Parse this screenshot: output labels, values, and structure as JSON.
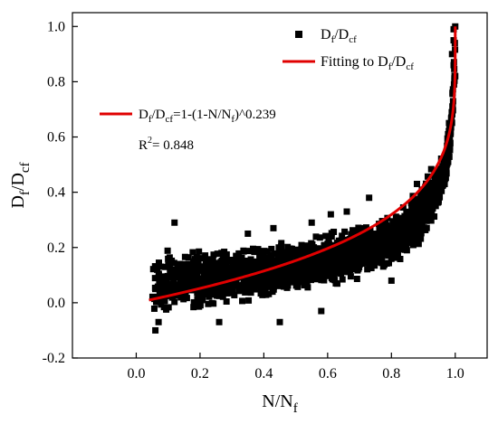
{
  "chart_data": {
    "type": "scatter",
    "xlim": [
      -0.2,
      1.1
    ],
    "ylim": [
      -0.2,
      1.05
    ],
    "x_ticks": [
      0.0,
      0.2,
      0.4,
      0.6,
      0.8,
      1.0
    ],
    "x_tick_labels": [
      "0.0",
      "0.2",
      "0.4",
      "0.6",
      "0.8",
      "1.0"
    ],
    "y_ticks": [
      -0.2,
      0.0,
      0.2,
      0.4,
      0.6,
      0.8,
      1.0
    ],
    "y_tick_labels": [
      "-0.2",
      "0.0",
      "0.2",
      "0.4",
      "0.6",
      "0.8",
      "1.0"
    ],
    "xlabel": {
      "base": "N/N",
      "sub": "f"
    },
    "ylabel": {
      "base": "D",
      "sub1": "f",
      "mid": "/D",
      "sub2": "cf"
    },
    "grid": false,
    "legend_placement": "top-right",
    "legend": [
      {
        "kind": "marker",
        "base": "D",
        "sub1": "f",
        "mid": "/D",
        "sub2": "cf",
        "color": "#000000"
      },
      {
        "kind": "line",
        "base": "Fitting to D",
        "sub1": "f",
        "mid": "/D",
        "sub2": "cf",
        "color": "#e00000"
      }
    ],
    "annotation": {
      "eq_a": "D",
      "eq_a_sub": "f",
      "eq_b": "/D",
      "eq_b_sub": "cf",
      "eq_c": "=1-(1-N/N",
      "eq_c_sub": "f",
      "eq_d": ")^0.239",
      "r2_base": "R",
      "r2_sup": "2",
      "r2_rest": "=  0.848",
      "line_color": "#e00000"
    },
    "series": [
      {
        "kind": "fit",
        "color": "#e00000",
        "exponent": 0.239,
        "x_range": [
          0.04,
          1.0
        ]
      },
      {
        "kind": "scatter",
        "color": "#000000",
        "band": {
          "x": [
            0.05,
            0.1,
            0.2,
            0.3,
            0.4,
            0.5,
            0.6,
            0.7,
            0.8,
            0.85,
            0.9,
            0.95,
            0.97,
            0.985,
            1.0
          ],
          "y_low": [
            -0.08,
            -0.06,
            -0.04,
            -0.02,
            0.0,
            0.02,
            0.05,
            0.08,
            0.12,
            0.16,
            0.22,
            0.32,
            0.4,
            0.5,
            0.8
          ],
          "y_high": [
            0.2,
            0.21,
            0.21,
            0.21,
            0.22,
            0.23,
            0.26,
            0.29,
            0.33,
            0.38,
            0.46,
            0.54,
            0.58,
            0.7,
            1.0
          ]
        },
        "outliers": [
          [
            0.12,
            0.29
          ],
          [
            0.35,
            0.25
          ],
          [
            0.43,
            0.27
          ],
          [
            0.55,
            0.29
          ],
          [
            0.61,
            0.32
          ],
          [
            0.66,
            0.33
          ],
          [
            0.73,
            0.38
          ],
          [
            0.88,
            0.43
          ],
          [
            0.26,
            -0.07
          ],
          [
            0.45,
            -0.07
          ],
          [
            0.58,
            -0.03
          ],
          [
            0.8,
            0.08
          ],
          [
            0.06,
            -0.1
          ],
          [
            0.07,
            -0.07
          ],
          [
            0.995,
            0.99
          ],
          [
            1.0,
            1.0
          ],
          [
            0.995,
            0.95
          ],
          [
            0.99,
            0.9
          ],
          [
            0.995,
            0.86
          ],
          [
            1.0,
            0.82
          ]
        ]
      }
    ]
  }
}
